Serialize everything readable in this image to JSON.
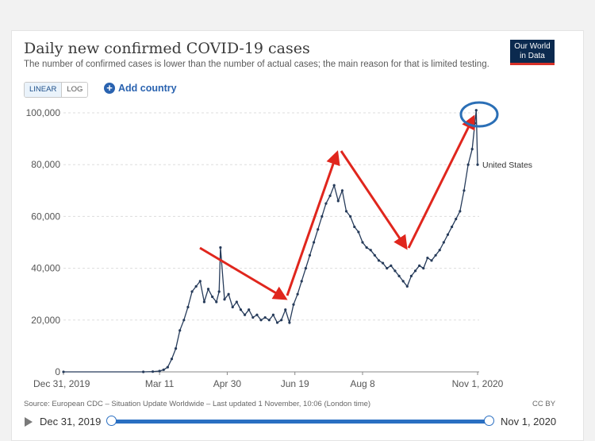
{
  "header": {
    "title": "Daily new confirmed COVID-19 cases",
    "subtitle": "The number of confirmed cases is lower than the number of actual cases; the main reason for that is limited testing.",
    "logo_line1": "Our World",
    "logo_line2": "in Data"
  },
  "controls": {
    "linear_label": "LINEAR",
    "log_label": "LOG",
    "active_scale": "linear",
    "add_country_label": "Add country"
  },
  "footer": {
    "source": "Source: European CDC – Situation Update Worldwide – Last updated 1 November, 10:06 (London time)",
    "license": "CC BY"
  },
  "timeline": {
    "start_label": "Dec 31, 2019",
    "end_label": "Nov 1, 2020",
    "start_fraction": 0,
    "end_fraction": 1
  },
  "colors": {
    "series": "#263b5a",
    "arrows": "#e0261d",
    "highlight_circle": "#2b6fb6",
    "grid": "#dddddd",
    "accent": "#2a63b0"
  },
  "chart_data": {
    "type": "line",
    "title": "Daily new confirmed COVID-19 cases",
    "xlabel": "",
    "ylabel": "",
    "ylim": [
      0,
      100000
    ],
    "grid": true,
    "y_ticks": [
      0,
      20000,
      40000,
      60000,
      80000,
      100000
    ],
    "y_tick_labels": [
      "0",
      "20,000",
      "40,000",
      "60,000",
      "80,000",
      "100,000"
    ],
    "x_ticks": [
      "2019-12-31",
      "2020-03-11",
      "2020-04-30",
      "2020-06-19",
      "2020-08-08",
      "2020-11-01"
    ],
    "x_tick_labels": [
      "Dec 31, 2019",
      "Mar 11",
      "Apr 30",
      "Jun 19",
      "Aug 8",
      "Nov 1, 2020"
    ],
    "series": [
      {
        "name": "United States",
        "x": [
          "2019-12-31",
          "2020-02-28",
          "2020-03-06",
          "2020-03-11",
          "2020-03-14",
          "2020-03-17",
          "2020-03-20",
          "2020-03-23",
          "2020-03-26",
          "2020-03-29",
          "2020-04-01",
          "2020-04-04",
          "2020-04-07",
          "2020-04-10",
          "2020-04-13",
          "2020-04-16",
          "2020-04-19",
          "2020-04-22",
          "2020-04-24",
          "2020-04-25",
          "2020-04-28",
          "2020-05-01",
          "2020-05-04",
          "2020-05-07",
          "2020-05-10",
          "2020-05-13",
          "2020-05-16",
          "2020-05-19",
          "2020-05-22",
          "2020-05-25",
          "2020-05-28",
          "2020-05-31",
          "2020-06-03",
          "2020-06-06",
          "2020-06-09",
          "2020-06-12",
          "2020-06-15",
          "2020-06-18",
          "2020-06-21",
          "2020-06-24",
          "2020-06-27",
          "2020-06-30",
          "2020-07-03",
          "2020-07-06",
          "2020-07-09",
          "2020-07-12",
          "2020-07-15",
          "2020-07-18",
          "2020-07-21",
          "2020-07-24",
          "2020-07-27",
          "2020-07-30",
          "2020-08-02",
          "2020-08-05",
          "2020-08-08",
          "2020-08-11",
          "2020-08-14",
          "2020-08-17",
          "2020-08-20",
          "2020-08-23",
          "2020-08-26",
          "2020-08-29",
          "2020-09-01",
          "2020-09-04",
          "2020-09-07",
          "2020-09-10",
          "2020-09-13",
          "2020-09-16",
          "2020-09-19",
          "2020-09-22",
          "2020-09-25",
          "2020-09-28",
          "2020-10-01",
          "2020-10-04",
          "2020-10-07",
          "2020-10-10",
          "2020-10-13",
          "2020-10-16",
          "2020-10-19",
          "2020-10-22",
          "2020-10-25",
          "2020-10-28",
          "2020-10-30",
          "2020-10-31",
          "2020-11-01"
        ],
        "values": [
          0,
          0,
          100,
          300,
          800,
          1800,
          5000,
          9000,
          16000,
          20000,
          25000,
          31000,
          33000,
          35000,
          27000,
          32000,
          29000,
          27000,
          31000,
          48000,
          28000,
          30000,
          25000,
          27000,
          24000,
          22000,
          24000,
          21000,
          22000,
          20000,
          21000,
          20000,
          22000,
          19000,
          20000,
          24000,
          19000,
          26000,
          30000,
          35000,
          40000,
          45000,
          50000,
          55000,
          60000,
          65000,
          68000,
          72000,
          66000,
          70000,
          62000,
          60000,
          56000,
          54000,
          50000,
          48000,
          47000,
          45000,
          43000,
          42000,
          40000,
          41000,
          39000,
          37000,
          35000,
          33000,
          37000,
          39000,
          41000,
          40000,
          44000,
          43000,
          45000,
          47000,
          50000,
          53000,
          56000,
          59000,
          62000,
          70000,
          80000,
          86000,
          96000,
          101000,
          80000
        ]
      }
    ],
    "annotations": {
      "series_label": "United States"
    }
  }
}
